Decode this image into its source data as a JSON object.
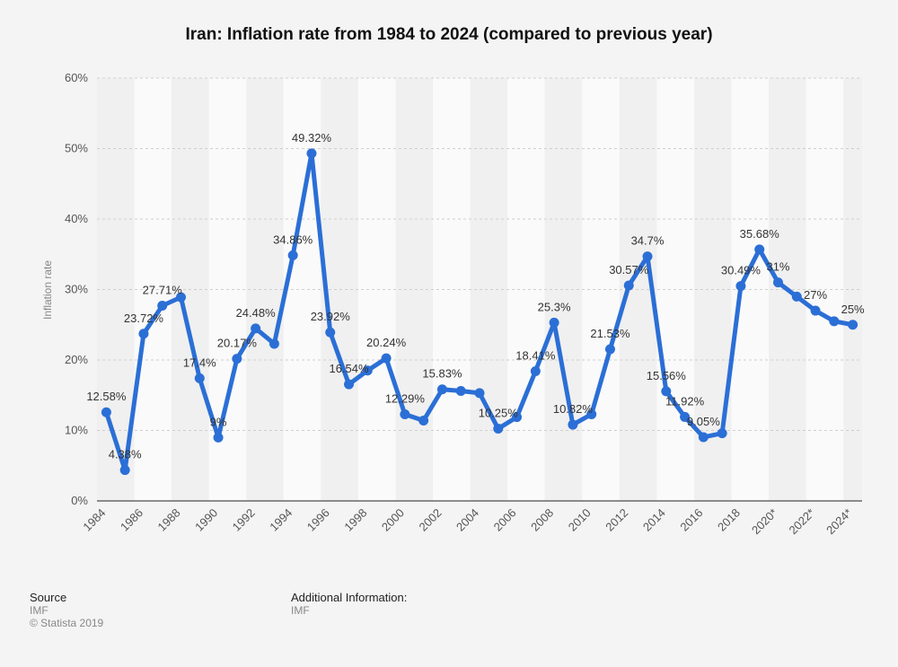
{
  "chart_data": {
    "type": "line",
    "title": "Iran: Inflation rate from 1984 to 2024 (compared to previous year)",
    "xlabel": "",
    "ylabel": "Inflation rate",
    "ylim": [
      0,
      60
    ],
    "yticks": [
      "0%",
      "10%",
      "20%",
      "30%",
      "40%",
      "50%",
      "60%"
    ],
    "x": [
      "1984",
      "1985",
      "1986",
      "1987",
      "1988",
      "1989",
      "1990",
      "1991",
      "1992",
      "1993",
      "1994",
      "1995",
      "1996",
      "1997",
      "1998",
      "1999",
      "2000",
      "2001",
      "2002",
      "2003",
      "2004",
      "2005",
      "2006",
      "2007",
      "2008",
      "2009",
      "2010",
      "2011",
      "2012",
      "2013",
      "2014",
      "2015",
      "2016",
      "2017",
      "2018",
      "2019",
      "2020*",
      "2021*",
      "2022*",
      "2023*",
      "2024*"
    ],
    "xtick_labels": [
      "1984",
      "1986",
      "1988",
      "1990",
      "1992",
      "1994",
      "1996",
      "1998",
      "2000",
      "2002",
      "2004",
      "2006",
      "2008",
      "2010",
      "2012",
      "2014",
      "2016",
      "2018",
      "2020*",
      "2022*",
      "2024*"
    ],
    "series": [
      {
        "name": "Inflation rate",
        "color": "#2b6fd6",
        "values": [
          12.58,
          4.38,
          23.72,
          27.71,
          28.9,
          17.4,
          9,
          20.17,
          24.48,
          22.3,
          34.86,
          49.32,
          23.92,
          16.54,
          18.5,
          20.24,
          12.29,
          11.4,
          15.83,
          15.6,
          15.3,
          10.25,
          11.9,
          18.41,
          25.3,
          10.82,
          12.3,
          21.53,
          30.57,
          34.7,
          15.56,
          11.92,
          9.05,
          9.6,
          30.49,
          35.68,
          31,
          29,
          27,
          25.5,
          25
        ],
        "labels": [
          "12.58%",
          "4.38%",
          "23.72%",
          "27.71%",
          "",
          "17.4%",
          "9%",
          "20.17%",
          "24.48%",
          "",
          "34.86%",
          "49.32%",
          "23.92%",
          "16.54%",
          "",
          "20.24%",
          "12.29%",
          "",
          "15.83%",
          "",
          "",
          "10.25%",
          "",
          "18.41%",
          "25.3%",
          "10.82%",
          "",
          "21.53%",
          "30.57%",
          "34.7%",
          "15.56%",
          "11.92%",
          "9.05%",
          "",
          "30.49%",
          "35.68%",
          "31%",
          "",
          "27%",
          "",
          "25%"
        ]
      }
    ],
    "grid": true
  },
  "footer": {
    "source_heading": "Source",
    "source_value": "IMF",
    "copyright": "© Statista 2019",
    "additional_heading": "Additional Information:",
    "additional_value": "IMF"
  }
}
